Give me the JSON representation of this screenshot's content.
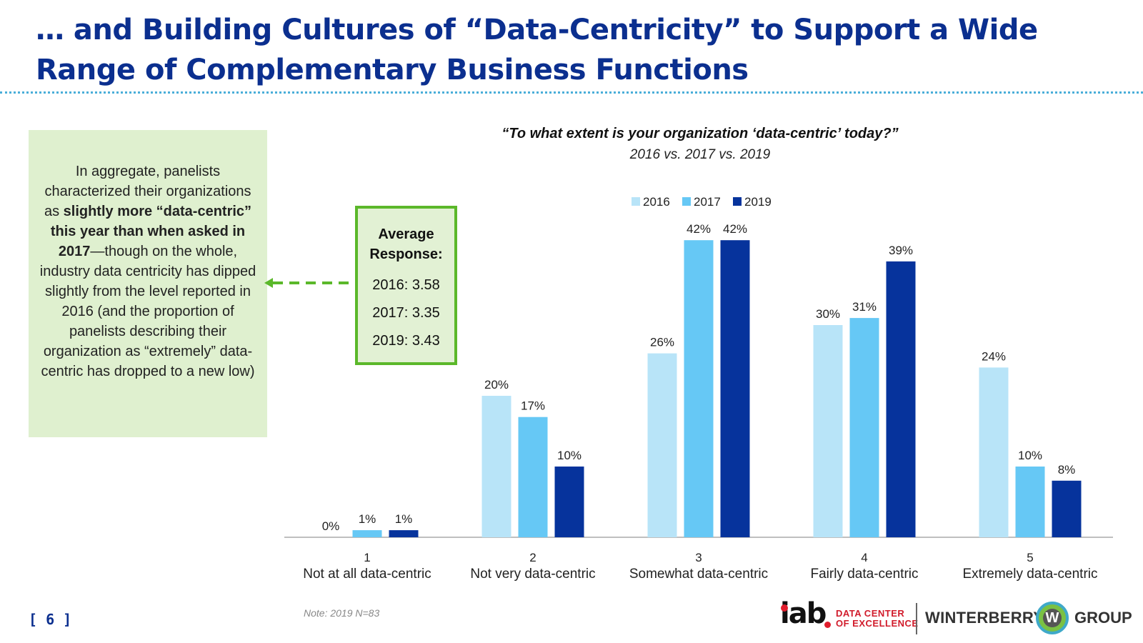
{
  "slide": {
    "title": "… and Building Cultures of “Data-Centricity” to Support a Wide Range of Complementary Business Functions",
    "page_number": "[ 6 ]",
    "footnote": "Note: 2019 N=83"
  },
  "side_note": {
    "part1": "In aggregate, panelists characterized their organizations as ",
    "bold": "slightly more “data-centric” this year than when asked in 2017",
    "part2": "—though on the whole, industry data centricity has dipped slightly from the level reported in 2016 (and the proportion of panelists describing their organization as “extremely” data-centric has dropped to a new low)"
  },
  "average_box": {
    "title": "Average Response:",
    "lines": [
      "2016: 3.58",
      "2017: 3.35",
      "2019: 3.43"
    ]
  },
  "chart_data": {
    "type": "bar",
    "title": "“To what extent is your organization ‘data-centric’ today?”",
    "subtitle": "2016 vs. 2017 vs. 2019",
    "categories": [
      {
        "num": "1",
        "label": "Not at all data-centric"
      },
      {
        "num": "2",
        "label": "Not very data-centric"
      },
      {
        "num": "3",
        "label": "Somewhat data-centric"
      },
      {
        "num": "4",
        "label": "Fairly data-centric"
      },
      {
        "num": "5",
        "label": "Extremely data-centric"
      }
    ],
    "series": [
      {
        "name": "2016",
        "color": "#b8e4f8",
        "values": [
          0,
          20,
          26,
          30,
          24
        ]
      },
      {
        "name": "2017",
        "color": "#66c8f5",
        "values": [
          1,
          17,
          42,
          31,
          10
        ]
      },
      {
        "name": "2019",
        "color": "#06339c",
        "values": [
          1,
          10,
          42,
          39,
          8
        ]
      }
    ],
    "value_suffix": "%",
    "ylim": [
      0,
      45
    ],
    "legend_position": "top-center",
    "grid": false
  },
  "logos": {
    "iab": "iab",
    "iab_sub1": "DATA CENTER",
    "iab_sub2": "OF EXCELLENCE",
    "winterberry": "WINTERBERRY",
    "badge": "W",
    "group": "GROUP"
  },
  "colors": {
    "title": "#0b2f8f",
    "note_bg": "#dff0cf",
    "accent_green": "#5bb82a"
  }
}
